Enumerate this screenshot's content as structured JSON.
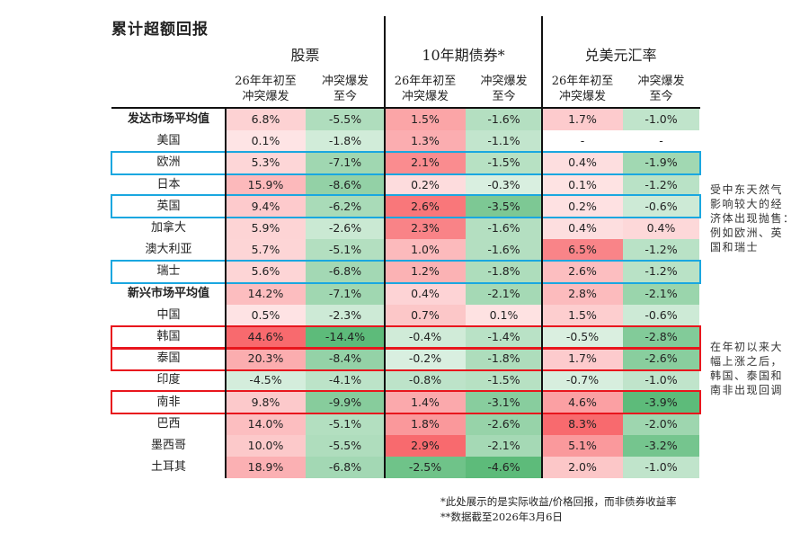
{
  "title": "累计超额回报",
  "groups": [
    "股票",
    "10年期债券*",
    "兑美元汇率"
  ],
  "sub_headers": [
    "26年年初至\n冲突爆发",
    "冲突爆发\n至今"
  ],
  "sub_header_lines": [
    [
      "26年年初至",
      "冲突爆发"
    ],
    [
      "冲突爆发",
      "至今"
    ]
  ],
  "colors": {
    "pos_max": "#f86a6e",
    "neg_max": "#5dbb7a",
    "blue_box": "#1aa7e0",
    "red_box": "#e8161d"
  },
  "chart_data": {
    "type": "table",
    "title": "累计超额回报",
    "columns": [
      "股票 26年年初至冲突爆发",
      "股票 冲突爆发至今",
      "10年期债券* 26年年初至冲突爆发",
      "10年期债券* 冲突爆发至今",
      "兑美元汇率 26年年初至冲突爆发",
      "兑美元汇率 冲突爆发至今"
    ],
    "rows": [
      {
        "name": "发达市场平均值",
        "bold": true,
        "values": [
          "6.8%",
          "-5.5%",
          "1.5%",
          "-1.6%",
          "1.7%",
          "-1.0%"
        ]
      },
      {
        "name": "美国",
        "values": [
          "0.1%",
          "-1.8%",
          "1.3%",
          "-1.1%",
          "-",
          "-"
        ]
      },
      {
        "name": "欧洲",
        "box": "blue",
        "values": [
          "5.3%",
          "-7.1%",
          "2.1%",
          "-1.5%",
          "0.4%",
          "-1.9%"
        ]
      },
      {
        "name": "日本",
        "values": [
          "15.9%",
          "-8.6%",
          "0.2%",
          "-0.3%",
          "0.1%",
          "-1.2%"
        ]
      },
      {
        "name": "英国",
        "box": "blue",
        "values": [
          "9.4%",
          "-6.2%",
          "2.6%",
          "-3.5%",
          "0.2%",
          "-0.6%"
        ]
      },
      {
        "name": "加拿大",
        "values": [
          "5.9%",
          "-2.6%",
          "2.3%",
          "-1.6%",
          "0.4%",
          "0.4%"
        ]
      },
      {
        "name": "澳大利亚",
        "values": [
          "5.7%",
          "-5.1%",
          "1.0%",
          "-1.6%",
          "6.5%",
          "-1.2%"
        ]
      },
      {
        "name": "瑞士",
        "box": "blue",
        "values": [
          "5.6%",
          "-6.8%",
          "1.2%",
          "-1.8%",
          "2.6%",
          "-1.2%"
        ]
      },
      {
        "name": "新兴市场平均值",
        "bold": true,
        "values": [
          "14.2%",
          "-7.1%",
          "0.4%",
          "-2.1%",
          "2.8%",
          "-2.1%"
        ]
      },
      {
        "name": "中国",
        "values": [
          "0.5%",
          "-2.3%",
          "0.7%",
          "0.1%",
          "1.5%",
          "-0.6%"
        ]
      },
      {
        "name": "韩国",
        "box": "red",
        "values": [
          "44.6%",
          "-14.4%",
          "-0.4%",
          "-1.4%",
          "-0.5%",
          "-2.8%"
        ]
      },
      {
        "name": "泰国",
        "box": "red",
        "values": [
          "20.3%",
          "-8.4%",
          "-0.2%",
          "-1.8%",
          "1.7%",
          "-2.6%"
        ]
      },
      {
        "name": "印度",
        "values": [
          "-4.5%",
          "-4.1%",
          "-0.8%",
          "-1.5%",
          "-0.7%",
          "-1.0%"
        ]
      },
      {
        "name": "南非",
        "box": "red",
        "values": [
          "9.8%",
          "-9.9%",
          "1.4%",
          "-3.1%",
          "4.6%",
          "-3.9%"
        ]
      },
      {
        "name": "巴西",
        "values": [
          "14.0%",
          "-5.1%",
          "1.8%",
          "-2.6%",
          "8.3%",
          "-2.0%"
        ]
      },
      {
        "name": "墨西哥",
        "values": [
          "10.0%",
          "-5.5%",
          "2.9%",
          "-2.1%",
          "5.1%",
          "-3.2%"
        ]
      },
      {
        "name": "土耳其",
        "values": [
          "18.9%",
          "-6.8%",
          "-2.5%",
          "-4.6%",
          "2.0%",
          "-1.0%"
        ]
      }
    ],
    "column_scale_max": [
      44.6,
      14.4,
      2.9,
      4.6,
      8.3,
      3.9
    ]
  },
  "notes": {
    "blue": [
      "受中东天然气",
      "影响较大的经",
      "济体出现抛售：",
      "例如欧洲、英",
      "国和瑞士"
    ],
    "red": [
      "在年初以来大",
      "幅上涨之后，",
      "韩国、泰国和",
      "南非出现回调"
    ]
  },
  "footnotes": [
    "*此处展示的是实际收益/价格回报，而非债券收益率",
    "**数据截至2026年3月6日"
  ]
}
